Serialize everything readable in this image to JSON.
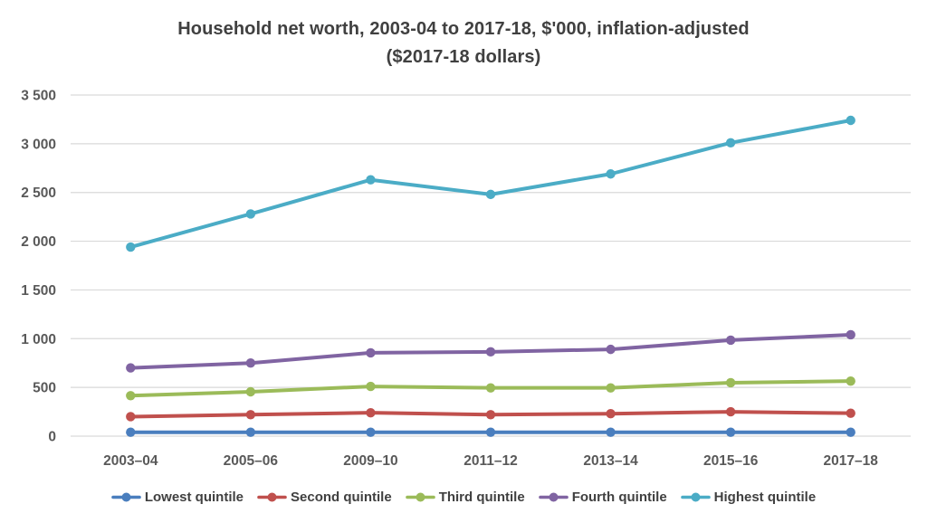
{
  "title": {
    "line1": "Household net worth, 2003-04 to 2017-18, $'000, inflation-adjusted",
    "line2": "($2017-18 dollars)"
  },
  "chart_data": {
    "type": "line",
    "title": "Household net worth, 2003-04 to 2017-18, $'000, inflation-adjusted ($2017-18 dollars)",
    "categories": [
      "2003–04",
      "2005–06",
      "2009–10",
      "2011–12",
      "2013–14",
      "2015–16",
      "2017–18"
    ],
    "series": [
      {
        "name": "Lowest quintile",
        "color": "#4A7EBE",
        "values": [
          40,
          40,
          40,
          40,
          40,
          40,
          40
        ]
      },
      {
        "name": "Second quintile",
        "color": "#C0504D",
        "values": [
          200,
          220,
          240,
          220,
          230,
          250,
          235
        ]
      },
      {
        "name": "Third quintile",
        "color": "#9BBB59",
        "values": [
          415,
          455,
          510,
          495,
          495,
          548,
          565
        ]
      },
      {
        "name": "Fourth quintile",
        "color": "#8064A2",
        "values": [
          700,
          750,
          855,
          865,
          890,
          985,
          1040
        ]
      },
      {
        "name": "Highest quintile",
        "color": "#4BACC6",
        "values": [
          1940,
          2280,
          2630,
          2480,
          2690,
          3010,
          3240
        ]
      }
    ],
    "xlabel": "",
    "ylabel": "",
    "ylim": [
      0,
      3500
    ],
    "y_ticks": [
      0,
      500,
      1000,
      1500,
      2000,
      2500,
      3000,
      3500
    ],
    "y_tick_labels": [
      "0",
      "500",
      "1 000",
      "1 500",
      "2 000",
      "2 500",
      "3 000",
      "3 500"
    ],
    "grid": "horizontal",
    "gridline_color": "#D9D9D9",
    "tick_color": "#595959",
    "title_color": "#404040",
    "legend_position": "bottom"
  }
}
